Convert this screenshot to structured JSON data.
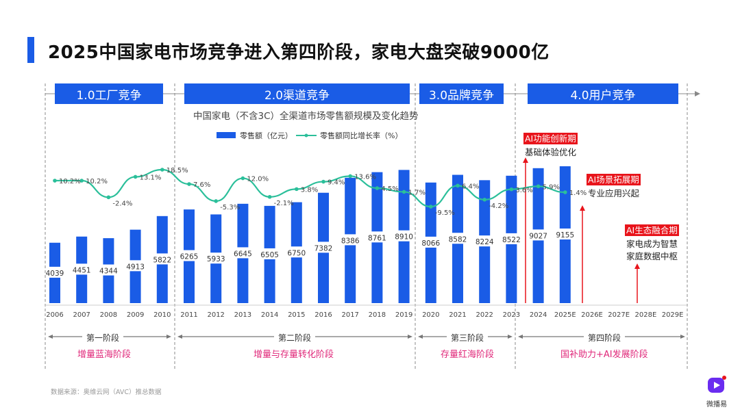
{
  "title": "2025中国家电市场竞争进入第四阶段，家电大盘突破9000亿",
  "stages": [
    "1.0工厂竞争",
    "2.0渠道竞争",
    "3.0品牌竞争",
    "4.0用户竞争"
  ],
  "phases": [
    {
      "name": "第一阶段",
      "desc": "增量蓝海阶段"
    },
    {
      "name": "第二阶段",
      "desc": "增量与存量转化阶段"
    },
    {
      "name": "第三阶段",
      "desc": "存量红海阶段"
    },
    {
      "name": "第四阶段",
      "desc": "国补助力+AI发展阶段"
    }
  ],
  "annotations": [
    {
      "title": "AI功能创新期",
      "text": [
        "基础体验优化"
      ]
    },
    {
      "title": "AI场景拓展期",
      "text": [
        "专业应用兴起"
      ]
    },
    {
      "title": "AI生态融合期",
      "text": [
        "家电成为智慧",
        "家庭数据中枢"
      ]
    }
  ],
  "source": "数据来源：奥维云网（AVC）推总数据",
  "logo": "微播易",
  "colors": {
    "bar": "#1a5ce6",
    "line": "#2bbf9a",
    "accent": "#e8141b",
    "phase": "#e0287a"
  },
  "chart_data": {
    "type": "bar+line",
    "title": "中国家电（不含3C）全渠道市场零售额规模及变化趋势",
    "legend_position": "top",
    "categories": [
      "2006",
      "2007",
      "2008",
      "2009",
      "2010",
      "2011",
      "2012",
      "2013",
      "2014",
      "2015",
      "2016",
      "2017",
      "2018",
      "2019",
      "2020",
      "2021",
      "2022",
      "2023",
      "2024",
      "2025E",
      "2026E",
      "2027E",
      "2028E",
      "2029E"
    ],
    "series": [
      {
        "name": "零售额（亿元）",
        "type": "bar",
        "values": [
          4039,
          4451,
          4344,
          4913,
          5822,
          6265,
          5933,
          6645,
          6505,
          6750,
          7382,
          8386,
          8761,
          8910,
          8066,
          8582,
          8224,
          8522,
          9027,
          9155,
          null,
          null,
          null,
          null
        ]
      },
      {
        "name": "零售额同比增长率（%）",
        "type": "line",
        "values": [
          10.2,
          10.2,
          -2.4,
          13.1,
          18.5,
          7.6,
          -5.3,
          12.0,
          -2.1,
          3.8,
          9.4,
          13.6,
          4.5,
          1.7,
          -9.5,
          6.4,
          -4.2,
          3.6,
          5.9,
          1.4,
          null,
          null,
          null,
          null
        ]
      }
    ],
    "grid": false
  }
}
